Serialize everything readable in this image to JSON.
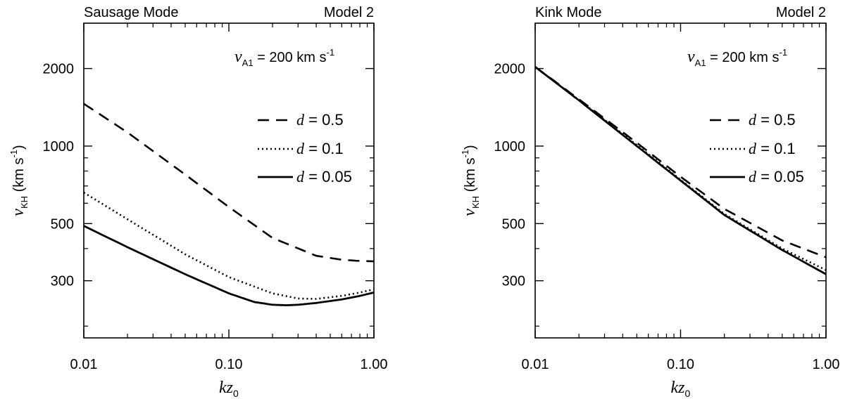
{
  "chart_data": [
    {
      "type": "line",
      "title": "Sausage Mode",
      "title_right": "Model 2",
      "annotation": {
        "var": "v",
        "sub": "A1",
        "text": " = 200 km s",
        "sup": "-1"
      },
      "xlabel": {
        "var": "kz",
        "sub": "0"
      },
      "ylabel": {
        "var": "v",
        "sub": "KH",
        "text": " (km s",
        "sup": "-1",
        "end": ")"
      },
      "xscale": "log",
      "yscale": "log",
      "xlim": [
        0.01,
        1.0
      ],
      "ylim": [
        180,
        3000
      ],
      "xticks": [
        {
          "value": 0.01,
          "label": "0.01"
        },
        {
          "value": 0.1,
          "label": "0.10"
        },
        {
          "value": 1.0,
          "label": "1.00"
        }
      ],
      "yticks": [
        {
          "value": 300,
          "label": "300"
        },
        {
          "value": 500,
          "label": "500"
        },
        {
          "value": 1000,
          "label": "1000"
        },
        {
          "value": 2000,
          "label": "2000"
        }
      ],
      "legend_position": "right",
      "series": [
        {
          "name": "d = 0.5",
          "var": "d",
          "label": " = 0.5",
          "style": "dashed",
          "x": [
            0.01,
            0.02,
            0.05,
            0.1,
            0.2,
            0.4,
            0.6,
            0.8,
            1.0
          ],
          "y": [
            1460,
            1130,
            775,
            580,
            440,
            375,
            362,
            358,
            357
          ]
        },
        {
          "name": "d = 0.1",
          "var": "d",
          "label": " = 0.1",
          "style": "dotted",
          "x": [
            0.01,
            0.02,
            0.05,
            0.1,
            0.2,
            0.3,
            0.4,
            0.6,
            0.8,
            1.0
          ],
          "y": [
            660,
            520,
            380,
            310,
            268,
            256,
            255,
            262,
            270,
            278
          ]
        },
        {
          "name": "d = 0.05",
          "var": "d",
          "label": " = 0.05",
          "style": "solid",
          "x": [
            0.01,
            0.02,
            0.05,
            0.1,
            0.15,
            0.2,
            0.25,
            0.3,
            0.4,
            0.6,
            0.8,
            1.0
          ],
          "y": [
            490,
            405,
            318,
            268,
            248,
            242,
            241,
            242,
            246,
            254,
            262,
            270
          ]
        }
      ]
    },
    {
      "type": "line",
      "title": "Kink Mode",
      "title_right": "Model 2",
      "annotation": {
        "var": "v",
        "sub": "A1",
        "text": " = 200 km s",
        "sup": "-1"
      },
      "xlabel": {
        "var": "kz",
        "sub": "0"
      },
      "ylabel": {
        "var": "v",
        "sub": "KH",
        "text": " (km s",
        "sup": "-1",
        "end": ")"
      },
      "xscale": "log",
      "yscale": "log",
      "xlim": [
        0.01,
        1.0
      ],
      "ylim": [
        180,
        3000
      ],
      "xticks": [
        {
          "value": 0.01,
          "label": "0.01"
        },
        {
          "value": 0.1,
          "label": "0.10"
        },
        {
          "value": 1.0,
          "label": "1.00"
        }
      ],
      "yticks": [
        {
          "value": 300,
          "label": "300"
        },
        {
          "value": 500,
          "label": "500"
        },
        {
          "value": 1000,
          "label": "1000"
        },
        {
          "value": 2000,
          "label": "2000"
        }
      ],
      "legend_position": "right",
      "series": [
        {
          "name": "d = 0.5",
          "var": "d",
          "label": " = 0.5",
          "style": "dashed",
          "x": [
            0.01,
            0.02,
            0.05,
            0.1,
            0.2,
            0.5,
            1.0
          ],
          "y": [
            2030,
            1520,
            1030,
            760,
            570,
            430,
            370
          ]
        },
        {
          "name": "d = 0.1",
          "var": "d",
          "label": " = 0.1",
          "style": "dotted",
          "x": [
            0.01,
            0.02,
            0.05,
            0.1,
            0.2,
            0.5,
            1.0
          ],
          "y": [
            2030,
            1510,
            1010,
            740,
            545,
            400,
            330
          ]
        },
        {
          "name": "d = 0.05",
          "var": "d",
          "label": " = 0.05",
          "style": "solid",
          "x": [
            0.01,
            0.02,
            0.05,
            0.1,
            0.2,
            0.5,
            1.0
          ],
          "y": [
            2030,
            1505,
            1000,
            735,
            540,
            395,
            318
          ]
        }
      ]
    }
  ]
}
